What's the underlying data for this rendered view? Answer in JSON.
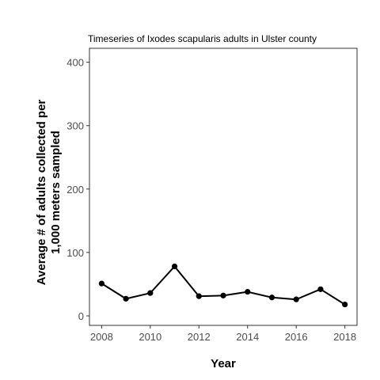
{
  "chart_data": {
    "type": "line",
    "title": "Timeseries of Ixodes scapularis adults in Ulster county",
    "xlabel": "Year",
    "ylabel": "Average # of adults collected per\n1,000 meters sampled",
    "x": [
      2008,
      2009,
      2010,
      2011,
      2012,
      2013,
      2014,
      2015,
      2016,
      2017,
      2018
    ],
    "series": [
      {
        "values": [
          51,
          27,
          36,
          78,
          31,
          32,
          38,
          29,
          26,
          42,
          18
        ]
      }
    ],
    "xlim": [
      2007.5,
      2018.5
    ],
    "ylim": [
      -15,
      422
    ],
    "xticks": [
      2008,
      2010,
      2012,
      2014,
      2016,
      2018
    ],
    "yticks": [
      0,
      100,
      200,
      300,
      400
    ],
    "grid": false,
    "line_color": "#000000",
    "point_color": "#000000"
  }
}
